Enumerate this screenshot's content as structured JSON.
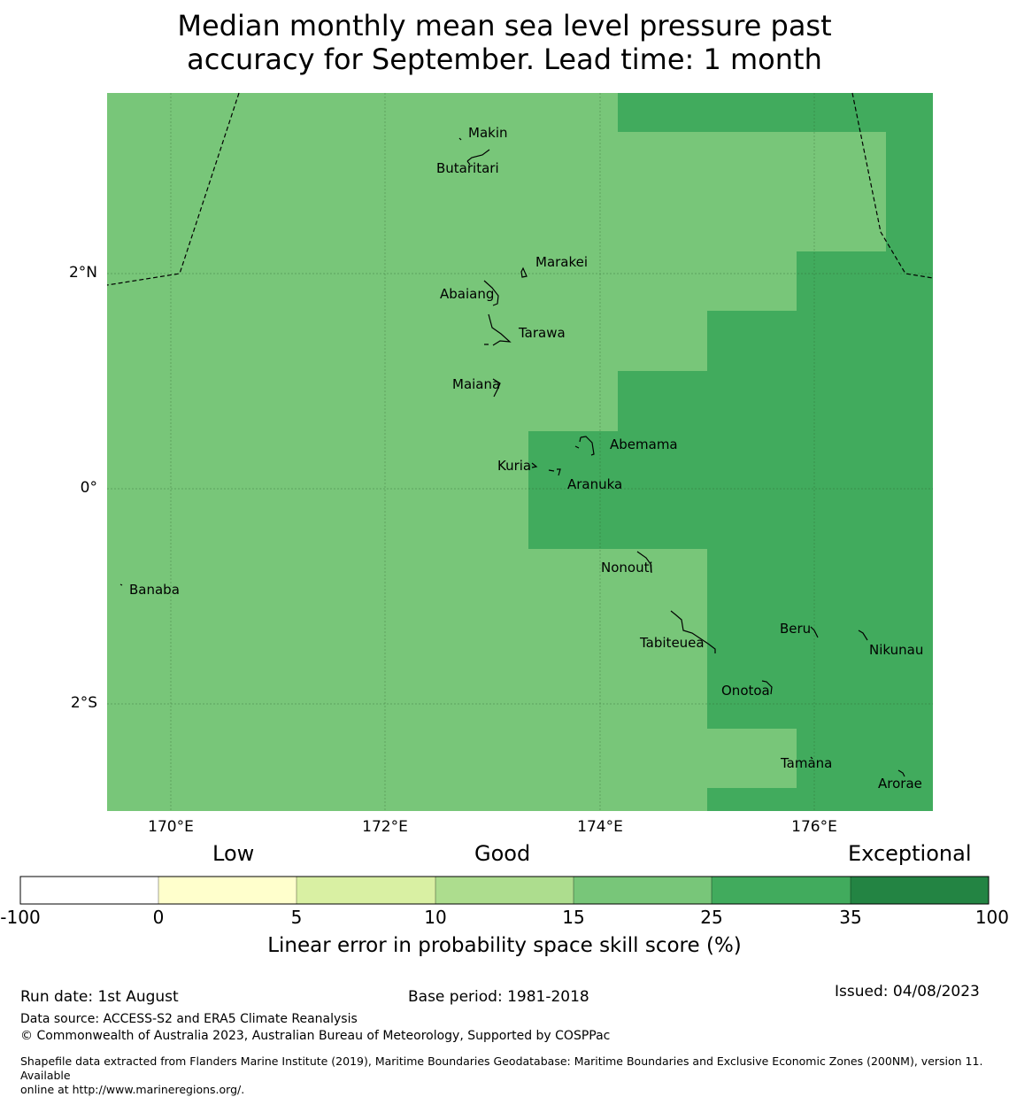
{
  "title_line1": "Median monthly mean sea level pressure past",
  "title_line2": "accuracy for September. Lead time: 1 month",
  "map": {
    "lat_labels": [
      "2°N",
      "0°",
      "2°S"
    ],
    "lon_labels": [
      "170°E",
      "172°E",
      "174°E",
      "176°E"
    ],
    "islands": [
      "Makin",
      "Butaritari",
      "Marakei",
      "Abaiang",
      "Tarawa",
      "Maiana",
      "Abemama",
      "Kuria",
      "Aranuka",
      "Nonouti",
      "Banaba",
      "Tabiteuea",
      "Beru",
      "Nikunau",
      "Onotoa",
      "Tamana",
      "Arorae"
    ],
    "colors": {
      "class_15_25": "#78c679",
      "class_25_35": "#41ab5d"
    }
  },
  "colorbar": {
    "category_labels": [
      "Low",
      "Good",
      "Exceptional"
    ],
    "ticks": [
      "-100",
      "0",
      "5",
      "10",
      "15",
      "25",
      "35",
      "100"
    ],
    "colors": [
      "#ffffff",
      "#ffffcc",
      "#d9f0a3",
      "#addd8e",
      "#78c679",
      "#41ab5d",
      "#238443"
    ],
    "xlabel": "Linear error in probability space skill score (%)"
  },
  "footer": {
    "run_date": "Run date: 1st August",
    "base_period": "Base period: 1981-2018",
    "issued": "Issued: 04/08/2023",
    "data_source": "Data source: ACCESS-S2 and ERA5 Climate Reanalysis",
    "copyright": "© Commonwealth of Australia 2023, Australian Bureau of Meteorology, Supported by COSPPac",
    "shapefile_line1": "Shapefile data extracted from Flanders Marine Institute (2019), Maritime Boundaries Geodatabase: Maritime Boundaries and Exclusive Economic Zones (200NM), version 11. Available",
    "shapefile_line2": "online at http://www.marineregions.org/."
  }
}
